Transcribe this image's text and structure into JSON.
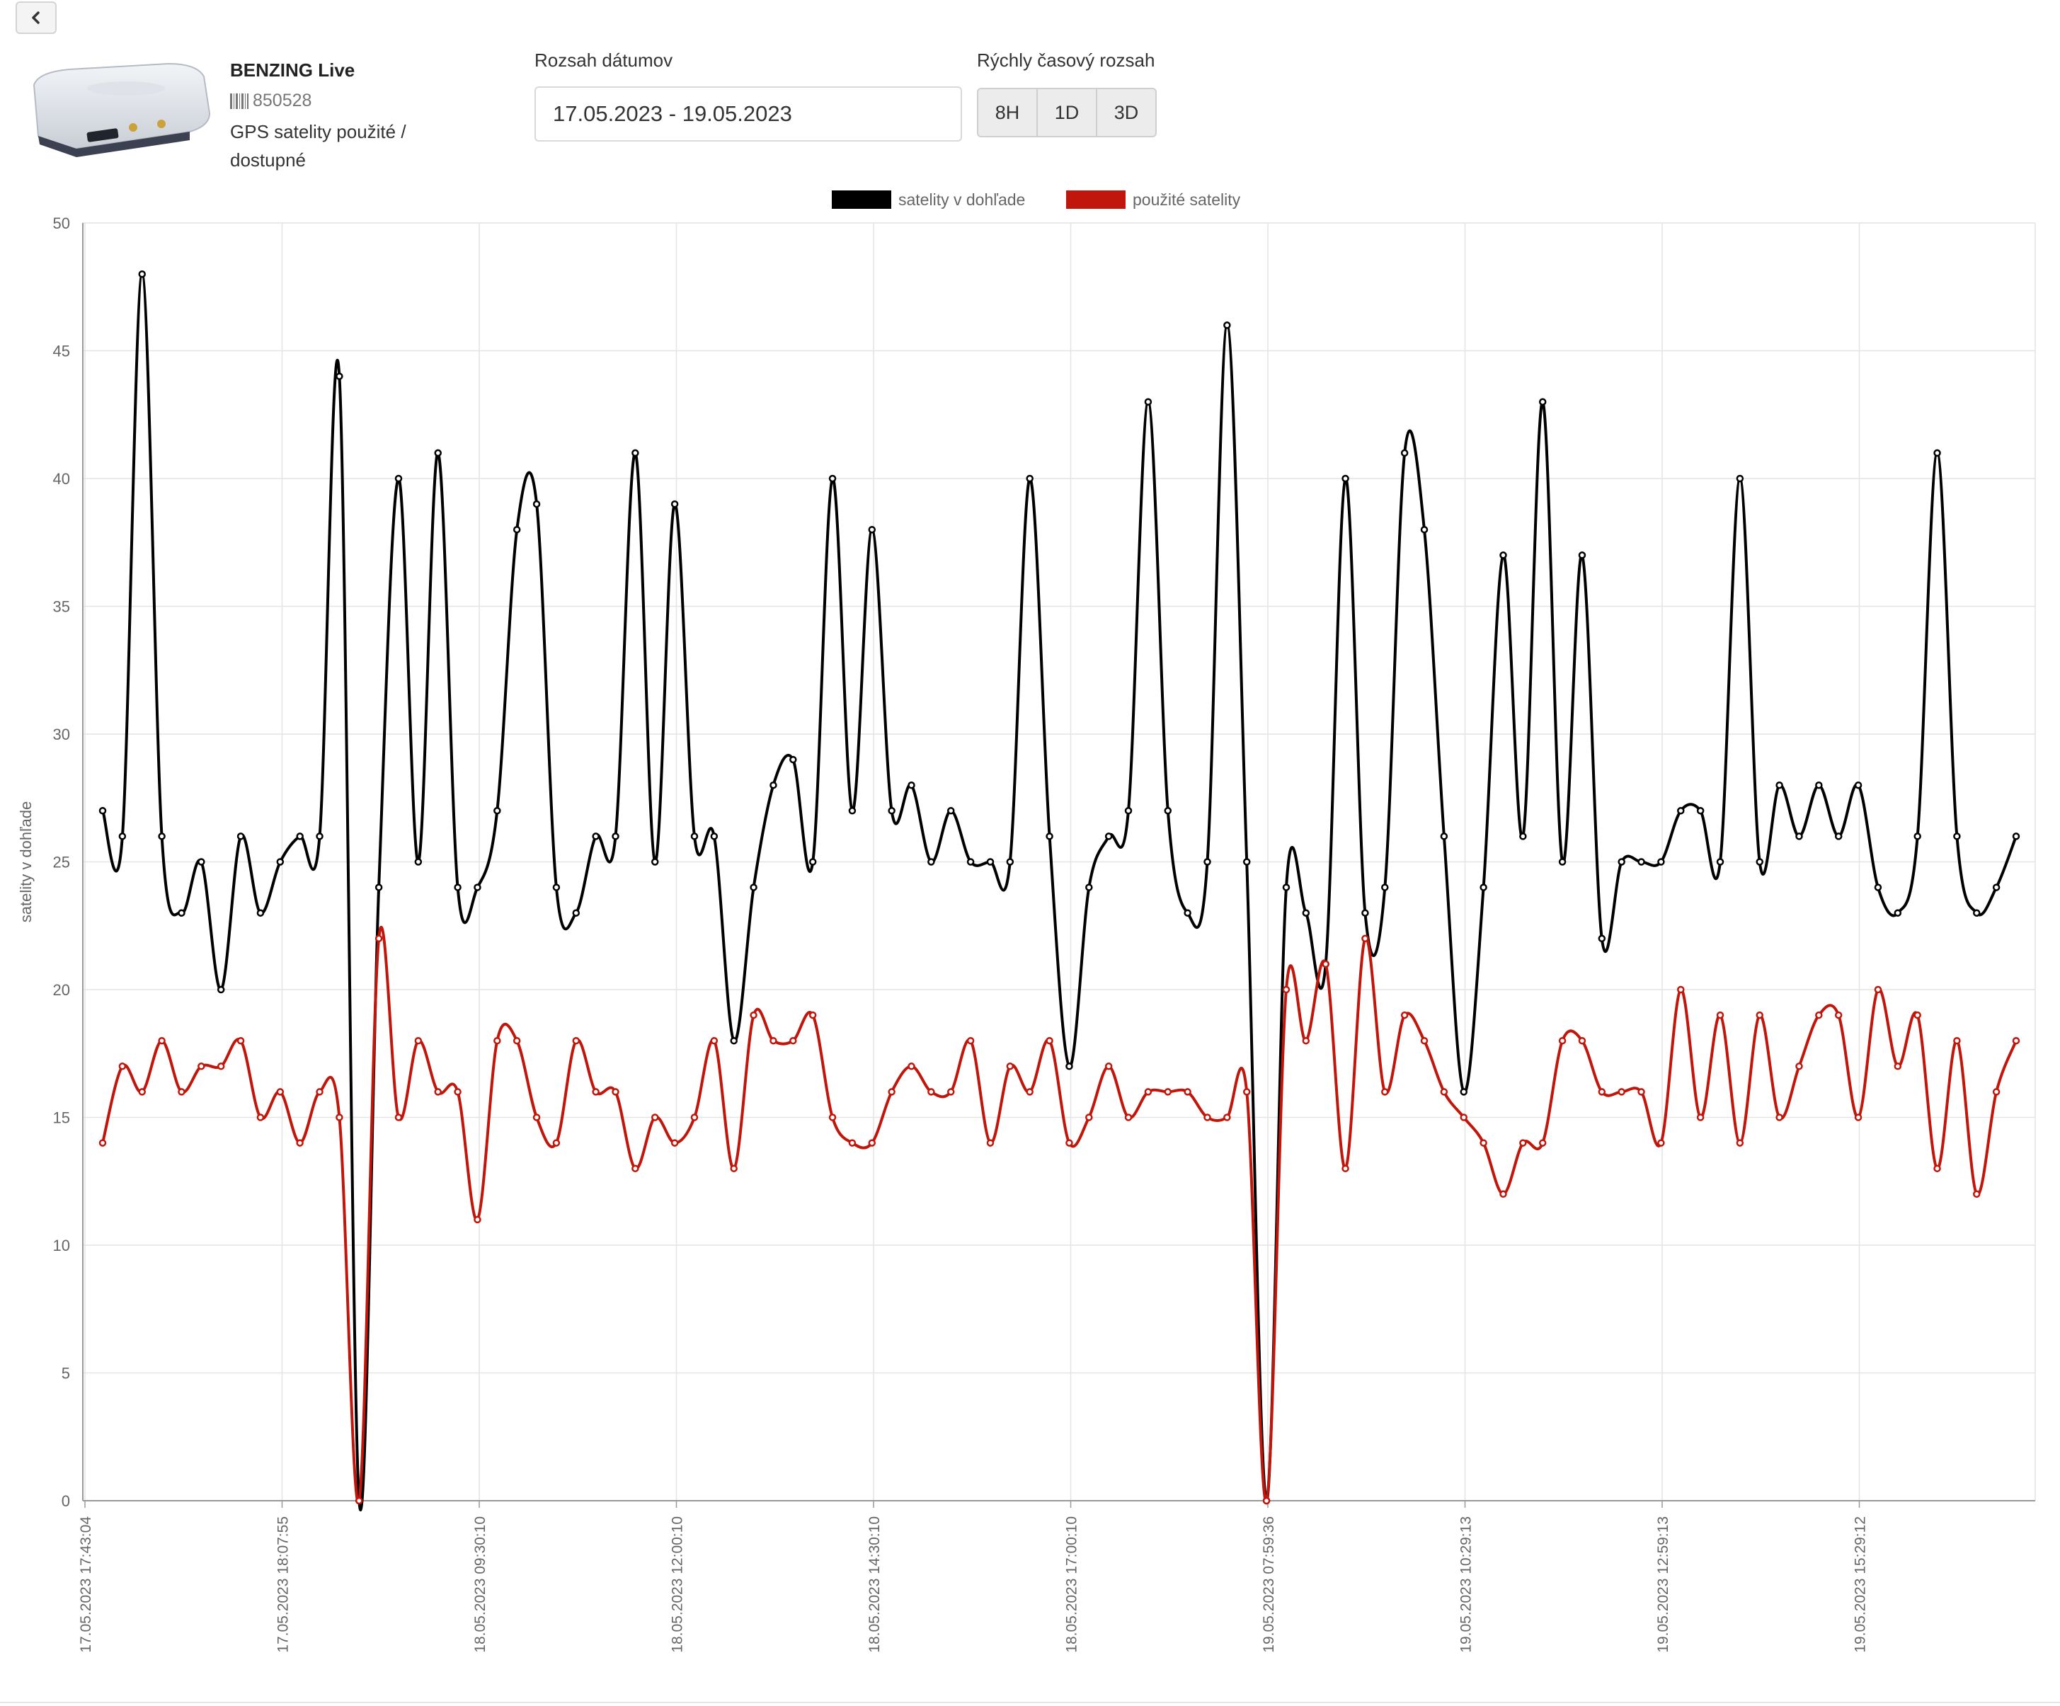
{
  "colors": {
    "series_black": "#000000",
    "series_red": "#c0160b",
    "grid": "#e4e4e4",
    "axis": "#999999"
  },
  "toolbar": {
    "back_icon": "chevron-left-icon"
  },
  "device": {
    "name": "BENZING Live",
    "id": "850528",
    "description": "GPS satelity použité / dostupné"
  },
  "date_range": {
    "label": "Rozsah dátumov",
    "value": "17.05.2023 - 19.05.2023"
  },
  "quick_range": {
    "label": "Rýchly časový rozsah",
    "options": [
      "8H",
      "1D",
      "3D"
    ]
  },
  "chart_data": {
    "type": "line",
    "ylabel": "satelity v dohľade",
    "ylim": [
      0,
      50
    ],
    "yticks": [
      0,
      5,
      10,
      15,
      20,
      25,
      30,
      35,
      40,
      45,
      50
    ],
    "xtick_labels": [
      "17.05.2023 17:43:04",
      "17.05.2023 18:07:55",
      "18.05.2023 09:30:10",
      "18.05.2023 12:00:10",
      "18.05.2023 14:30:10",
      "18.05.2023 17:00:10",
      "19.05.2023 07:59:36",
      "19.05.2023 10:29:13",
      "19.05.2023 12:59:13",
      "19.05.2023 15:29:12"
    ],
    "legend_position": "top",
    "grid": true,
    "series": [
      {
        "name": "satelity v dohľade",
        "color": "#000000",
        "values": [
          27,
          26,
          48,
          26,
          23,
          25,
          20,
          26,
          23,
          25,
          26,
          26,
          44,
          0,
          24,
          40,
          25,
          41,
          24,
          24,
          27,
          38,
          39,
          24,
          23,
          26,
          26,
          41,
          25,
          39,
          26,
          26,
          18,
          24,
          28,
          29,
          25,
          40,
          27,
          38,
          27,
          28,
          25,
          27,
          25,
          25,
          25,
          40,
          26,
          17,
          24,
          26,
          27,
          43,
          27,
          23,
          25,
          46,
          25,
          0,
          24,
          23,
          21,
          40,
          23,
          24,
          41,
          38,
          26,
          16,
          24,
          37,
          26,
          43,
          25,
          37,
          22,
          25,
          25,
          25,
          27,
          27,
          25,
          40,
          25,
          28,
          26,
          28,
          26,
          28,
          24,
          23,
          26,
          41,
          26,
          23,
          24,
          26
        ]
      },
      {
        "name": "použité satelity",
        "color": "#c0160b",
        "values": [
          14,
          17,
          16,
          18,
          16,
          17,
          17,
          18,
          15,
          16,
          14,
          16,
          15,
          0,
          22,
          15,
          18,
          16,
          16,
          11,
          18,
          18,
          15,
          14,
          18,
          16,
          16,
          13,
          15,
          14,
          15,
          18,
          13,
          19,
          18,
          18,
          19,
          15,
          14,
          14,
          16,
          17,
          16,
          16,
          18,
          14,
          17,
          16,
          18,
          14,
          15,
          17,
          15,
          16,
          16,
          16,
          15,
          15,
          16,
          0,
          20,
          18,
          21,
          13,
          22,
          16,
          19,
          18,
          16,
          15,
          14,
          12,
          14,
          14,
          18,
          18,
          16,
          16,
          16,
          14,
          20,
          15,
          19,
          14,
          19,
          15,
          17,
          19,
          19,
          15,
          20,
          17,
          19,
          13,
          18,
          12,
          16,
          18
        ]
      }
    ]
  }
}
